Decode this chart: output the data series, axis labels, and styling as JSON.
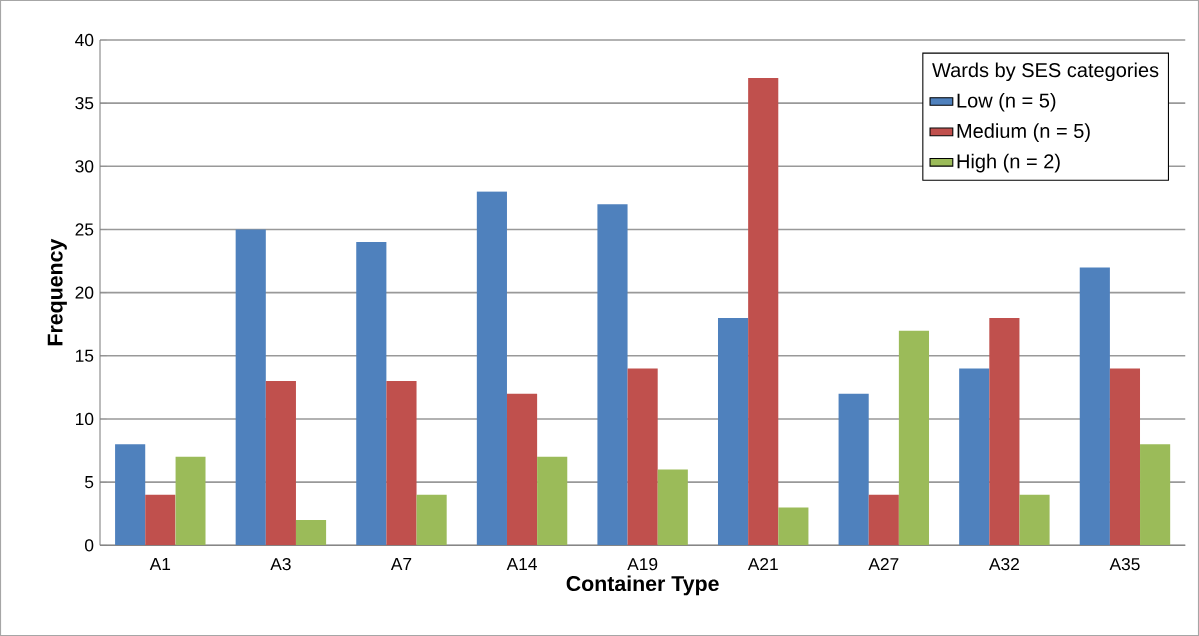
{
  "chart_data": {
    "type": "bar",
    "xlabel": "Container Type",
    "ylabel": "Frequency",
    "legend_title": "Wards by SES categories",
    "categories": [
      "A1",
      "A3",
      "A7",
      "A14",
      "A19",
      "A21",
      "A27",
      "A32",
      "A35"
    ],
    "series": [
      {
        "name": "Low (n = 5)",
        "color": "#4f81bd",
        "values": [
          8,
          25,
          24,
          28,
          27,
          18,
          12,
          14,
          22
        ]
      },
      {
        "name": "Medium (n = 5)",
        "color": "#c0504d",
        "values": [
          4,
          13,
          13,
          12,
          14,
          37,
          4,
          18,
          14
        ]
      },
      {
        "name": "High (n = 2)",
        "color": "#9bbb59",
        "values": [
          7,
          2,
          4,
          7,
          6,
          3,
          17,
          4,
          8
        ]
      }
    ],
    "ylim": [
      0,
      40
    ],
    "yticks": [
      0,
      5,
      10,
      15,
      20,
      25,
      30,
      35,
      40
    ],
    "grid": "y",
    "legend": "top right"
  }
}
